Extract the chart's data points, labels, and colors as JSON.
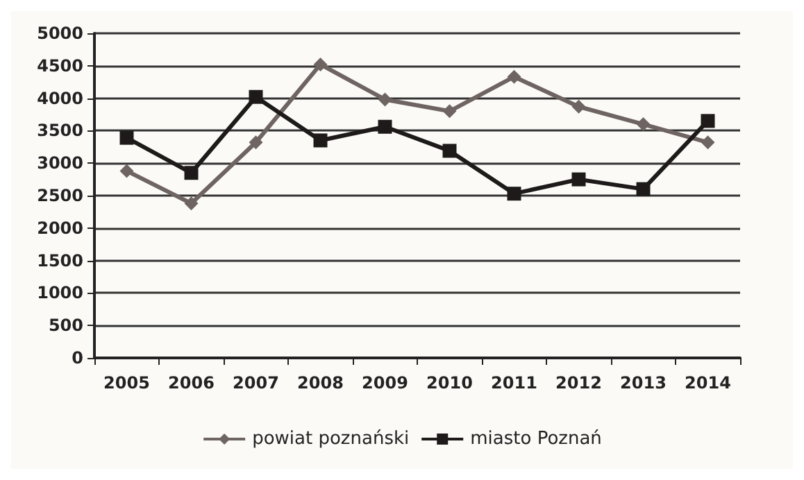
{
  "chart_data": {
    "type": "line",
    "categories": [
      "2005",
      "2006",
      "2007",
      "2008",
      "2009",
      "2010",
      "2011",
      "2012",
      "2013",
      "2014"
    ],
    "series": [
      {
        "name": "powiat poznański",
        "color": "#6e6462",
        "marker": "diamond",
        "values": [
          2880,
          2380,
          3320,
          4520,
          3980,
          3800,
          4330,
          3870,
          3600,
          3320
        ]
      },
      {
        "name": "miasto Poznań",
        "color": "#1e1a1a",
        "marker": "square",
        "values": [
          3390,
          2850,
          4020,
          3350,
          3560,
          3190,
          2530,
          2750,
          2600,
          3650
        ]
      }
    ],
    "ylim": [
      0,
      5000
    ],
    "yticks": [
      0,
      500,
      1000,
      1500,
      2000,
      2500,
      3000,
      3500,
      4000,
      4500,
      5000
    ],
    "grid": "y",
    "legend": "bottom"
  }
}
